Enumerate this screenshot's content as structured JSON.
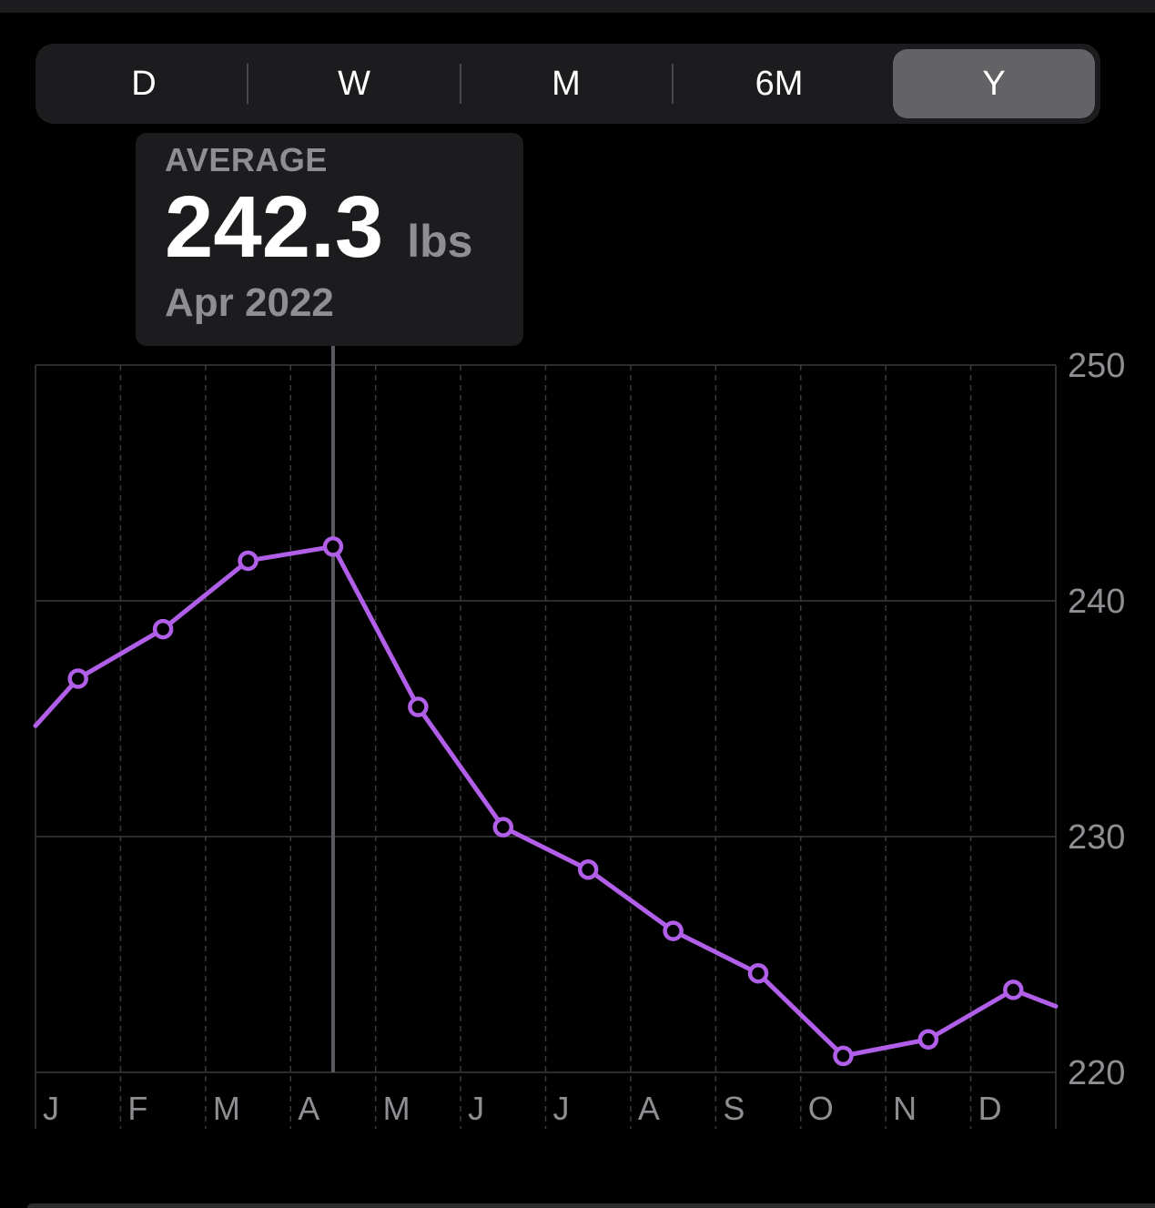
{
  "range_picker": {
    "options": [
      {
        "label": "D",
        "selected": false
      },
      {
        "label": "W",
        "selected": false
      },
      {
        "label": "M",
        "selected": false
      },
      {
        "label": "6M",
        "selected": false
      },
      {
        "label": "Y",
        "selected": true
      }
    ]
  },
  "tooltip": {
    "label": "AVERAGE",
    "value": "242.3",
    "unit": "lbs",
    "date": "Apr 2022"
  },
  "colors": {
    "line": "#b15ee8",
    "background": "#000000",
    "panel": "#1c1c1e",
    "grid": "#3a3a3c",
    "axis_text": "#8e8e93",
    "selection_line": "#5a5a5e"
  },
  "chart_data": {
    "type": "line",
    "categories": [
      "J",
      "F",
      "M",
      "A",
      "M",
      "J",
      "J",
      "A",
      "S",
      "O",
      "N",
      "D"
    ],
    "values": [
      236.7,
      238.8,
      241.7,
      242.3,
      235.5,
      230.4,
      228.6,
      226.0,
      224.2,
      220.7,
      221.4,
      223.5
    ],
    "leading_edge_value": 234.7,
    "trailing_edge_value": 222.8,
    "ylim": [
      220,
      250
    ],
    "yticks": [
      220,
      230,
      240,
      250
    ],
    "selected_index": 3,
    "grid": true,
    "y_axis_side": "right",
    "title": "",
    "xlabel": "",
    "ylabel": ""
  }
}
